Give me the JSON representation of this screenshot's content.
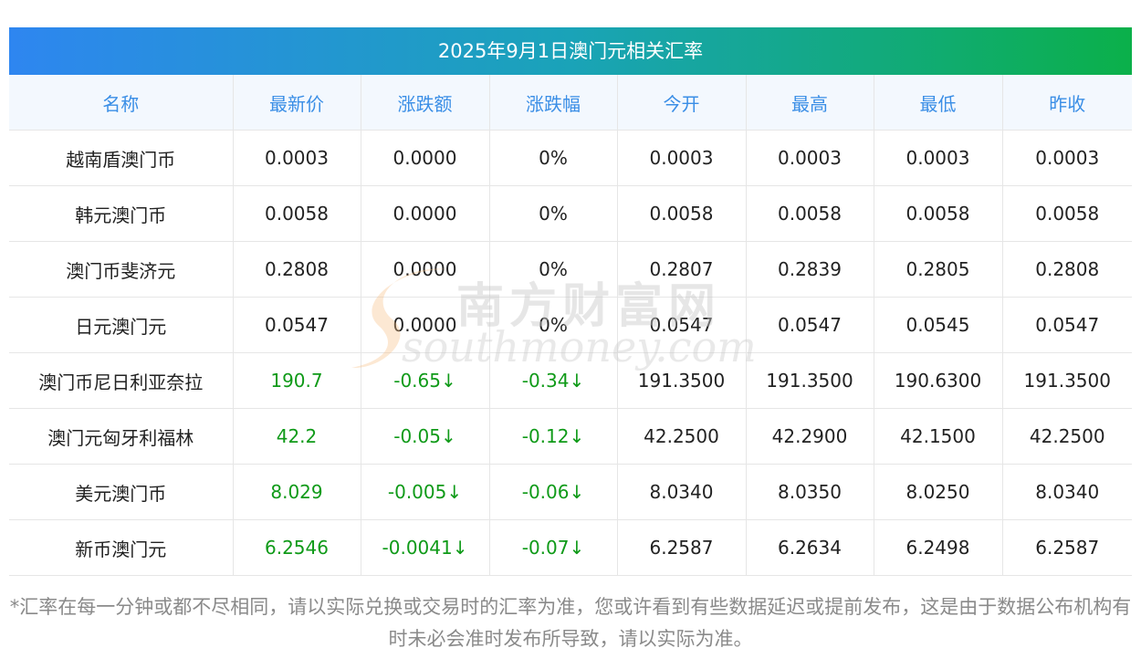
{
  "title": "2025年9月1日澳门元相关汇率",
  "headers": [
    "名称",
    "最新价",
    "涨跌额",
    "涨跌幅",
    "今开",
    "最高",
    "最低",
    "昨收"
  ],
  "rows": [
    [
      "越南盾澳门币",
      "0.0003",
      "0.0000",
      "0%",
      "0.0003",
      "0.0003",
      "0.0003",
      "0.0003"
    ],
    [
      "韩元澳门币",
      "0.0058",
      "0.0000",
      "0%",
      "0.0058",
      "0.0058",
      "0.0058",
      "0.0058"
    ],
    [
      "澳门币斐济元",
      "0.2808",
      "0.0000",
      "0%",
      "0.2807",
      "0.2839",
      "0.2805",
      "0.2808"
    ],
    [
      "日元澳门元",
      "0.0547",
      "0.0000",
      "0%",
      "0.0547",
      "0.0547",
      "0.0545",
      "0.0547"
    ],
    [
      "澳门币尼日利亚奈拉",
      "190.7",
      "-0.65↓",
      "-0.34↓",
      "191.3500",
      "191.3500",
      "190.6300",
      "191.3500"
    ],
    [
      "澳门元匈牙利福林",
      "42.2",
      "-0.05↓",
      "-0.12↓",
      "42.2500",
      "42.2900",
      "42.1500",
      "42.2500"
    ],
    [
      "美元澳门币",
      "8.029",
      "-0.005↓",
      "-0.06↓",
      "8.0340",
      "8.0350",
      "8.0250",
      "8.0340"
    ],
    [
      "新币澳门元",
      "6.2546",
      "-0.0041↓",
      "-0.07↓",
      "6.2587",
      "6.2634",
      "6.2498",
      "6.2587"
    ]
  ],
  "down_rows": [
    4,
    5,
    6,
    7
  ],
  "note": "*汇率在每一分钟或都不尽相同，请以实际兑换或交易时的汇率为准，您或许看到有些数据延迟或提前发布，这是由于数据公布机构有时未必会准时发布所导致，请以实际为准。",
  "watermark": {
    "cn": "南方财富网",
    "en": "southmoney.com"
  },
  "colors": {
    "title_gradient_start": "#2e86f0",
    "title_gradient_end": "#0bb04a",
    "header_text": "#3a8ee6",
    "header_bg": "#f3f8fe",
    "down": "#0f9a18",
    "note_text": "#8a8a8a"
  }
}
